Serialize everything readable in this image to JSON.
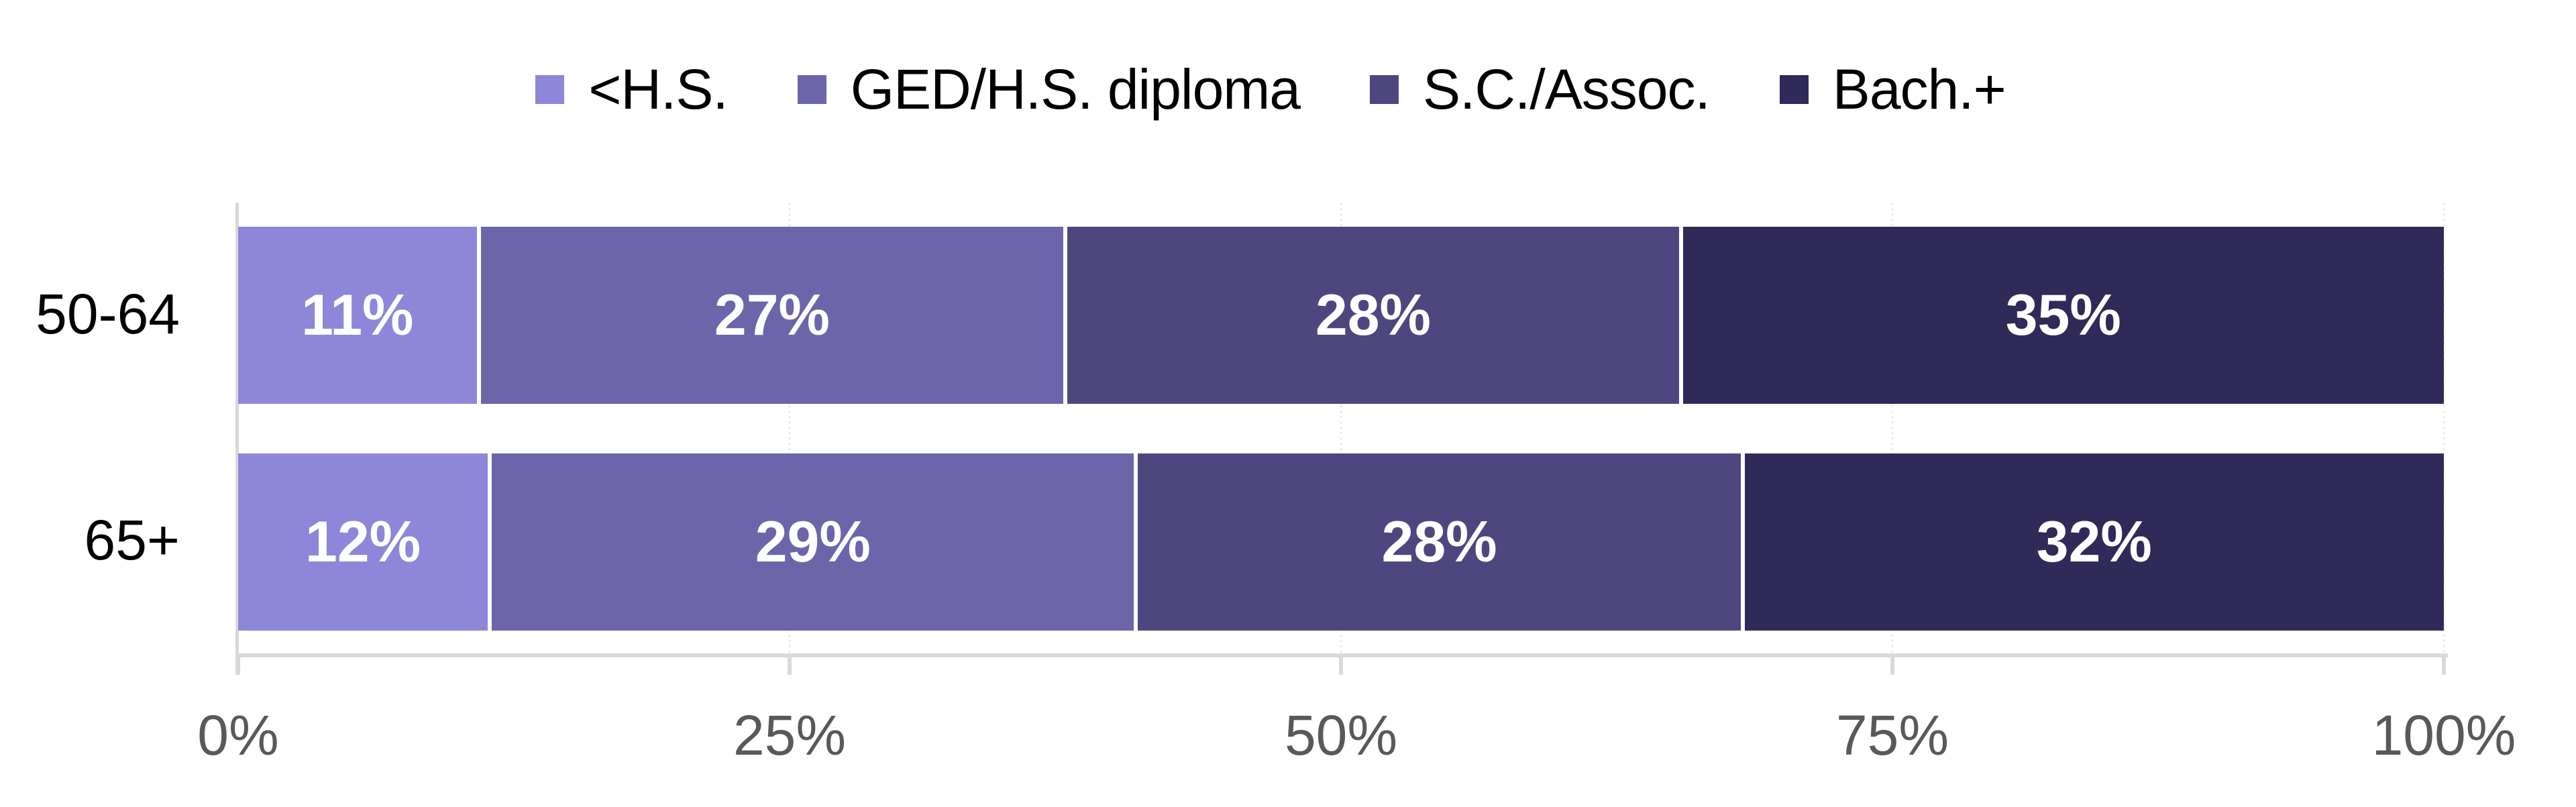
{
  "chart_data": {
    "type": "bar",
    "orientation": "horizontal",
    "stacked": "percent",
    "title": "",
    "xlabel": "",
    "ylabel": "",
    "categories": [
      "50-64",
      "65+"
    ],
    "series": [
      {
        "name": "<H.S.",
        "color": "#8E86D8",
        "values": [
          11,
          12
        ],
        "labels": [
          "11%",
          "12%"
        ],
        "widths": [
          11.0,
          11.5
        ]
      },
      {
        "name": "GED/H.S. diploma",
        "color": "#6C65A9",
        "values": [
          27,
          29
        ],
        "labels": [
          "27%",
          "29%"
        ],
        "widths": [
          26.6,
          29.3
        ]
      },
      {
        "name": "S.C./Assoc.",
        "color": "#4E477F",
        "values": [
          28,
          28
        ],
        "labels": [
          "28%",
          "28%"
        ],
        "widths": [
          27.9,
          27.5
        ]
      },
      {
        "name": "Bach.+",
        "color": "#302A58",
        "values": [
          35,
          32
        ],
        "labels": [
          "35%",
          "32%"
        ],
        "widths": [
          34.5,
          31.7
        ]
      }
    ],
    "xlim": [
      0,
      100
    ],
    "xticks": [
      "0%",
      "25%",
      "50%",
      "75%",
      "100%"
    ],
    "grid": "vertical dotted, very light",
    "legend_position": "top"
  },
  "legend": [
    {
      "label": "<H.S.",
      "color": "#8E86D8"
    },
    {
      "label": "GED/H.S. diploma",
      "color": "#6C65A9"
    },
    {
      "label": "S.C./Assoc.",
      "color": "#4E477F"
    },
    {
      "label": "Bach.+",
      "color": "#302A58"
    }
  ],
  "rows": [
    {
      "label": "50-64",
      "segments": [
        {
          "text": "11%",
          "width": 11.0,
          "color": "#8E86D8"
        },
        {
          "text": "27%",
          "width": 26.6,
          "color": "#6C65A9"
        },
        {
          "text": "28%",
          "width": 27.9,
          "color": "#4E477F"
        },
        {
          "text": "35%",
          "width": 34.5,
          "color": "#302A58"
        }
      ]
    },
    {
      "label": "65+",
      "segments": [
        {
          "text": "12%",
          "width": 11.5,
          "color": "#8E86D8"
        },
        {
          "text": "29%",
          "width": 29.3,
          "color": "#6C65A9"
        },
        {
          "text": "28%",
          "width": 27.5,
          "color": "#4E477F"
        },
        {
          "text": "32%",
          "width": 31.7,
          "color": "#302A58"
        }
      ]
    }
  ],
  "axis": {
    "ticks": [
      {
        "label": "0%",
        "pos": 0
      },
      {
        "label": "25%",
        "pos": 25
      },
      {
        "label": "50%",
        "pos": 50
      },
      {
        "label": "75%",
        "pos": 75
      },
      {
        "label": "100%",
        "pos": 100
      }
    ]
  }
}
